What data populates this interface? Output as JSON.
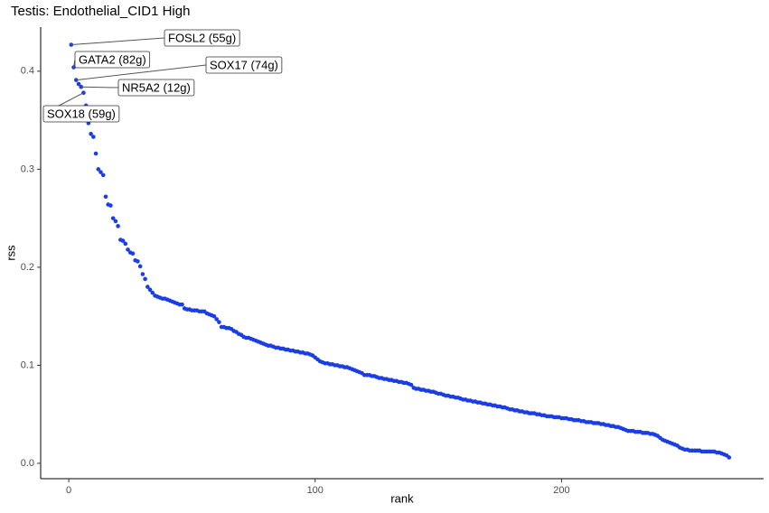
{
  "chart_data": {
    "type": "scatter",
    "title": "Testis: Endothelial_CID1 High",
    "x_label": "rank",
    "y_label": "rss",
    "color": "#1a3de6",
    "xlim": [
      -11.4,
      282
    ],
    "xticks": [
      0,
      100,
      200
    ],
    "ylim": [
      -0.0157,
      0.445
    ],
    "yticks": [
      {
        "value": 0,
        "label": "0.0"
      },
      0.1,
      0.2,
      0.3,
      0.4
    ],
    "x": [
      1,
      2,
      3,
      4,
      5,
      6,
      7,
      8,
      9,
      10,
      11,
      12,
      13,
      14,
      15,
      16,
      17,
      18,
      19,
      20,
      21,
      22,
      23,
      24,
      25,
      26,
      27,
      28,
      29,
      30,
      31,
      32,
      33,
      34,
      35,
      36,
      37,
      38,
      39,
      40,
      41,
      42,
      43,
      44,
      45,
      46,
      47,
      48,
      49,
      50,
      51,
      52,
      53,
      54,
      55,
      56,
      57,
      58,
      59,
      60,
      61,
      62,
      63,
      64,
      65,
      66,
      67,
      68,
      69,
      70,
      71,
      72,
      73,
      74,
      75,
      76,
      77,
      78,
      79,
      80,
      81,
      82,
      83,
      84,
      85,
      86,
      87,
      88,
      89,
      90,
      91,
      92,
      93,
      94,
      95,
      96,
      97,
      98,
      99,
      100,
      101,
      102,
      103,
      104,
      105,
      106,
      107,
      108,
      109,
      110,
      111,
      112,
      113,
      114,
      115,
      116,
      117,
      118,
      119,
      120,
      121,
      122,
      123,
      124,
      125,
      126,
      127,
      128,
      129,
      130,
      131,
      132,
      133,
      134,
      135,
      136,
      137,
      138,
      139,
      140,
      141,
      142,
      143,
      144,
      145,
      146,
      147,
      148,
      149,
      150,
      151,
      152,
      153,
      154,
      155,
      156,
      157,
      158,
      159,
      160,
      161,
      162,
      163,
      164,
      165,
      166,
      167,
      168,
      169,
      170,
      171,
      172,
      173,
      174,
      175,
      176,
      177,
      178,
      179,
      180,
      181,
      182,
      183,
      184,
      185,
      186,
      187,
      188,
      189,
      190,
      191,
      192,
      193,
      194,
      195,
      196,
      197,
      198,
      199,
      200,
      201,
      202,
      203,
      204,
      205,
      206,
      207,
      208,
      209,
      210,
      211,
      212,
      213,
      214,
      215,
      216,
      217,
      218,
      219,
      220,
      221,
      222,
      223,
      224,
      225,
      226,
      227,
      228,
      229,
      230,
      231,
      232,
      233,
      234,
      235,
      236,
      237,
      238,
      239,
      240,
      241,
      242,
      243,
      244,
      245,
      246,
      247,
      248,
      249,
      250,
      251,
      252,
      253,
      254,
      255,
      256,
      257,
      258,
      259,
      260,
      261,
      262,
      263,
      264,
      265,
      266,
      267,
      268
    ],
    "values": [
      0.427,
      0.404,
      0.391,
      0.387,
      0.384,
      0.378,
      0.365,
      0.347,
      0.336,
      0.333,
      0.316,
      0.3,
      0.297,
      0.294,
      0.272,
      0.264,
      0.263,
      0.25,
      0.247,
      0.242,
      0.228,
      0.227,
      0.224,
      0.218,
      0.215,
      0.214,
      0.207,
      0.206,
      0.201,
      0.193,
      0.188,
      0.18,
      0.177,
      0.174,
      0.171,
      0.17,
      0.169,
      0.168,
      0.168,
      0.167,
      0.166,
      0.165,
      0.164,
      0.163,
      0.162,
      0.162,
      0.158,
      0.157,
      0.157,
      0.156,
      0.156,
      0.156,
      0.155,
      0.155,
      0.155,
      0.153,
      0.152,
      0.151,
      0.15,
      0.147,
      0.144,
      0.139,
      0.139,
      0.138,
      0.138,
      0.137,
      0.135,
      0.134,
      0.132,
      0.131,
      0.129,
      0.128,
      0.128,
      0.127,
      0.126,
      0.125,
      0.124,
      0.123,
      0.122,
      0.121,
      0.12,
      0.12,
      0.119,
      0.118,
      0.118,
      0.117,
      0.117,
      0.116,
      0.116,
      0.115,
      0.115,
      0.114,
      0.114,
      0.113,
      0.113,
      0.112,
      0.112,
      0.111,
      0.11,
      0.108,
      0.106,
      0.104,
      0.103,
      0.102,
      0.102,
      0.101,
      0.101,
      0.1,
      0.1,
      0.099,
      0.099,
      0.098,
      0.098,
      0.097,
      0.096,
      0.095,
      0.094,
      0.093,
      0.092,
      0.09,
      0.09,
      0.09,
      0.089,
      0.089,
      0.088,
      0.087,
      0.087,
      0.086,
      0.086,
      0.085,
      0.085,
      0.084,
      0.084,
      0.083,
      0.083,
      0.082,
      0.082,
      0.081,
      0.08,
      0.077,
      0.076,
      0.076,
      0.075,
      0.075,
      0.074,
      0.074,
      0.073,
      0.073,
      0.072,
      0.071,
      0.071,
      0.07,
      0.069,
      0.069,
      0.068,
      0.068,
      0.067,
      0.067,
      0.066,
      0.065,
      0.065,
      0.064,
      0.064,
      0.063,
      0.063,
      0.062,
      0.062,
      0.061,
      0.061,
      0.06,
      0.06,
      0.059,
      0.059,
      0.058,
      0.058,
      0.057,
      0.057,
      0.056,
      0.055,
      0.055,
      0.054,
      0.054,
      0.053,
      0.053,
      0.052,
      0.052,
      0.051,
      0.051,
      0.051,
      0.05,
      0.05,
      0.049,
      0.049,
      0.048,
      0.048,
      0.048,
      0.047,
      0.047,
      0.047,
      0.046,
      0.046,
      0.046,
      0.045,
      0.045,
      0.044,
      0.044,
      0.044,
      0.043,
      0.043,
      0.042,
      0.042,
      0.042,
      0.041,
      0.041,
      0.041,
      0.04,
      0.04,
      0.039,
      0.039,
      0.038,
      0.038,
      0.037,
      0.037,
      0.036,
      0.035,
      0.034,
      0.033,
      0.033,
      0.033,
      0.032,
      0.032,
      0.032,
      0.031,
      0.031,
      0.031,
      0.03,
      0.03,
      0.029,
      0.028,
      0.026,
      0.024,
      0.023,
      0.022,
      0.021,
      0.02,
      0.019,
      0.018,
      0.016,
      0.015,
      0.014,
      0.014,
      0.013,
      0.013,
      0.013,
      0.013,
      0.013,
      0.012,
      0.012,
      0.012,
      0.012,
      0.012,
      0.012,
      0.011,
      0.011,
      0.01,
      0.009,
      0.008,
      0.006
    ],
    "annotations": [
      {
        "text": "FOSL2 (55g)",
        "x": 1
      },
      {
        "text": "GATA2 (82g)",
        "x": 2
      },
      {
        "text": "SOX17 (74g)",
        "x": 3
      },
      {
        "text": "NR5A2 (12g)",
        "x": 5
      },
      {
        "text": "SOX18 (59g)",
        "x": 6
      }
    ]
  }
}
